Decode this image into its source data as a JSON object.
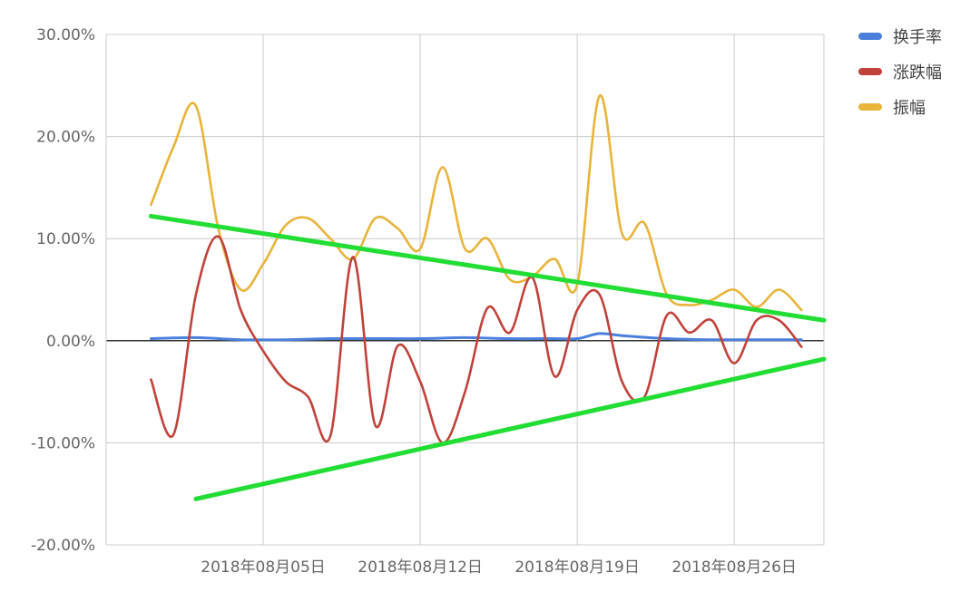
{
  "chart_data": {
    "type": "line",
    "title": "",
    "xlabel": "",
    "ylabel": "",
    "x_ticks": [
      "2018年08月05日",
      "2018年08月12日",
      "2018年08月19日",
      "2018年08月26日"
    ],
    "x_range": [
      "2018-07-31",
      "2018-08-29"
    ],
    "ylim": [
      -0.2,
      0.3
    ],
    "y_ticks": [
      "30.00%",
      "20.00%",
      "10.00%",
      "0.00%",
      "-10.00%",
      "-20.00%"
    ],
    "y_tick_values": [
      0.3,
      0.2,
      0.1,
      0.0,
      -0.1,
      -0.2
    ],
    "grid": true,
    "legend_position": "right",
    "series": [
      {
        "name": "换手率",
        "color": "#4a7fdc",
        "points": [
          [
            "2018-07-31",
            0.002
          ],
          [
            "2018-08-02",
            0.003
          ],
          [
            "2018-08-04",
            0.001
          ],
          [
            "2018-08-06",
            0.001
          ],
          [
            "2018-08-08",
            0.002
          ],
          [
            "2018-08-10",
            0.002
          ],
          [
            "2018-08-12",
            0.002
          ],
          [
            "2018-08-14",
            0.003
          ],
          [
            "2018-08-16",
            0.002
          ],
          [
            "2018-08-18",
            0.002
          ],
          [
            "2018-08-19",
            0.002
          ],
          [
            "2018-08-20",
            0.007
          ],
          [
            "2018-08-21",
            0.005
          ],
          [
            "2018-08-23",
            0.002
          ],
          [
            "2018-08-25",
            0.001
          ],
          [
            "2018-08-27",
            0.001
          ],
          [
            "2018-08-29",
            0.001
          ]
        ]
      },
      {
        "name": "涨跌幅",
        "color": "#c0423b",
        "points": [
          [
            "2018-07-31",
            -0.038
          ],
          [
            "2018-08-01",
            -0.092
          ],
          [
            "2018-08-02",
            0.045
          ],
          [
            "2018-08-03",
            0.102
          ],
          [
            "2018-08-04",
            0.03
          ],
          [
            "2018-08-05",
            -0.01
          ],
          [
            "2018-08-06",
            -0.04
          ],
          [
            "2018-08-07",
            -0.055
          ],
          [
            "2018-08-08",
            -0.093
          ],
          [
            "2018-08-09",
            0.082
          ],
          [
            "2018-08-10",
            -0.083
          ],
          [
            "2018-08-11",
            -0.005
          ],
          [
            "2018-08-12",
            -0.04
          ],
          [
            "2018-08-13",
            -0.1
          ],
          [
            "2018-08-14",
            -0.05
          ],
          [
            "2018-08-15",
            0.032
          ],
          [
            "2018-08-16",
            0.008
          ],
          [
            "2018-08-17",
            0.062
          ],
          [
            "2018-08-18",
            -0.035
          ],
          [
            "2018-08-19",
            0.03
          ],
          [
            "2018-08-20",
            0.045
          ],
          [
            "2018-08-21",
            -0.04
          ],
          [
            "2018-08-22",
            -0.055
          ],
          [
            "2018-08-23",
            0.025
          ],
          [
            "2018-08-24",
            0.008
          ],
          [
            "2018-08-25",
            0.02
          ],
          [
            "2018-08-26",
            -0.022
          ],
          [
            "2018-08-27",
            0.02
          ],
          [
            "2018-08-28",
            0.02
          ],
          [
            "2018-08-29",
            -0.006
          ]
        ]
      },
      {
        "name": "振幅",
        "color": "#e8b43a",
        "points": [
          [
            "2018-07-31",
            0.133
          ],
          [
            "2018-08-01",
            0.19
          ],
          [
            "2018-08-02",
            0.23
          ],
          [
            "2018-08-03",
            0.11
          ],
          [
            "2018-08-04",
            0.05
          ],
          [
            "2018-08-05",
            0.075
          ],
          [
            "2018-08-06",
            0.113
          ],
          [
            "2018-08-07",
            0.12
          ],
          [
            "2018-08-08",
            0.1
          ],
          [
            "2018-08-09",
            0.08
          ],
          [
            "2018-08-10",
            0.12
          ],
          [
            "2018-08-11",
            0.11
          ],
          [
            "2018-08-12",
            0.09
          ],
          [
            "2018-08-13",
            0.17
          ],
          [
            "2018-08-14",
            0.09
          ],
          [
            "2018-08-15",
            0.1
          ],
          [
            "2018-08-16",
            0.06
          ],
          [
            "2018-08-17",
            0.063
          ],
          [
            "2018-08-18",
            0.08
          ],
          [
            "2018-08-19",
            0.055
          ],
          [
            "2018-08-20",
            0.24
          ],
          [
            "2018-08-21",
            0.105
          ],
          [
            "2018-08-22",
            0.115
          ],
          [
            "2018-08-23",
            0.045
          ],
          [
            "2018-08-24",
            0.035
          ],
          [
            "2018-08-25",
            0.04
          ],
          [
            "2018-08-26",
            0.05
          ],
          [
            "2018-08-27",
            0.033
          ],
          [
            "2018-08-28",
            0.05
          ],
          [
            "2018-08-29",
            0.03
          ]
        ]
      }
    ],
    "annotations": [
      {
        "type": "trend-line",
        "color": "#22dd33",
        "from": [
          "2018-07-31",
          0.122
        ],
        "to": [
          "2018-08-30",
          0.02
        ]
      },
      {
        "type": "trend-line",
        "color": "#22dd33",
        "from": [
          "2018-08-02",
          -0.155
        ],
        "to": [
          "2018-08-30",
          -0.018
        ]
      }
    ]
  }
}
